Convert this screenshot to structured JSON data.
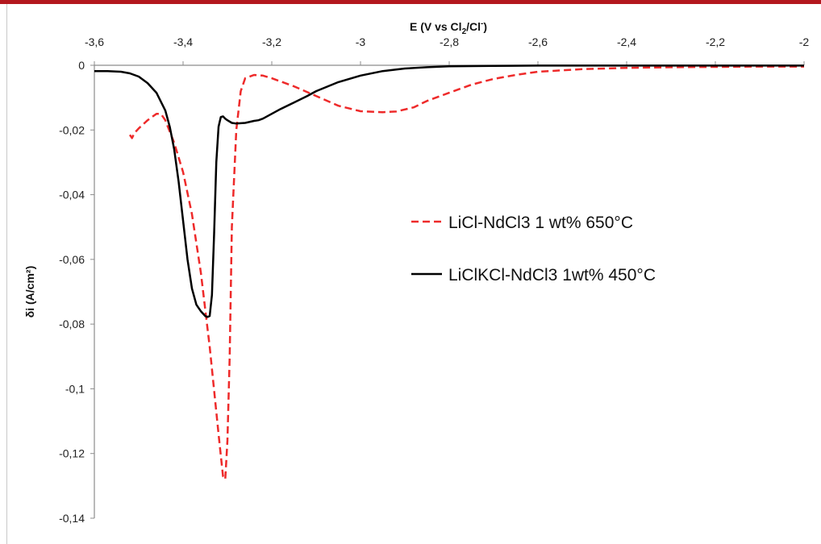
{
  "chart_data": {
    "type": "line",
    "xlabel": {
      "main": "E (V vs Cl",
      "sub": "2",
      "mid": "/Cl",
      "sup": "-",
      "end": ")"
    },
    "ylabel": "δi (A/cm²)",
    "xlim": [
      -3.6,
      -2
    ],
    "ylim": [
      -0.14,
      0
    ],
    "x_axis_position": "top",
    "x_ticks": [
      -3.6,
      -3.4,
      -3.2,
      -3.0,
      -2.8,
      -2.6,
      -2.4,
      -2.2,
      -2.0
    ],
    "x_tick_labels": [
      "-3,6",
      "-3,4",
      "-3,2",
      "-3",
      "-2,8",
      "-2,6",
      "-2,4",
      "-2,2",
      "-2"
    ],
    "y_ticks": [
      0,
      -0.02,
      -0.04,
      -0.06,
      -0.08,
      -0.1,
      -0.12,
      -0.14
    ],
    "y_tick_labels": [
      "0",
      "-0,02",
      "-0,04",
      "-0,06",
      "-0,08",
      "-0,1",
      "-0,12",
      "-0,14"
    ],
    "grid": false,
    "legend_position": "center-right",
    "series": [
      {
        "name": "LiCl-NdCl3 1 wt% 650°C",
        "color": "#ee2a2a",
        "style": "dashed",
        "x": [
          -3.52,
          -3.515,
          -3.51,
          -3.5,
          -3.48,
          -3.46,
          -3.45,
          -3.44,
          -3.42,
          -3.4,
          -3.38,
          -3.36,
          -3.34,
          -3.32,
          -3.31,
          -3.305,
          -3.3,
          -3.295,
          -3.29,
          -3.28,
          -3.27,
          -3.26,
          -3.24,
          -3.22,
          -3.2,
          -3.15,
          -3.1,
          -3.05,
          -3.0,
          -2.95,
          -2.92,
          -2.88,
          -2.85,
          -2.8,
          -2.75,
          -2.7,
          -2.65,
          -2.6,
          -2.5,
          -2.4,
          -2.3,
          -2.2,
          -2.1,
          -2.0
        ],
        "y": [
          -0.0215,
          -0.0225,
          -0.021,
          -0.0195,
          -0.017,
          -0.015,
          -0.015,
          -0.017,
          -0.024,
          -0.033,
          -0.046,
          -0.064,
          -0.087,
          -0.114,
          -0.127,
          -0.128,
          -0.116,
          -0.09,
          -0.05,
          -0.02,
          -0.008,
          -0.004,
          -0.003,
          -0.0032,
          -0.004,
          -0.0065,
          -0.0095,
          -0.0125,
          -0.0142,
          -0.0145,
          -0.0143,
          -0.013,
          -0.011,
          -0.0085,
          -0.006,
          -0.0042,
          -0.003,
          -0.002,
          -0.0012,
          -0.0008,
          -0.0006,
          -0.0005,
          -0.0004,
          -0.0004
        ]
      },
      {
        "name": "LiClKCl-NdCl3 1wt% 450°C",
        "color": "#000000",
        "style": "solid",
        "x": [
          -3.6,
          -3.57,
          -3.54,
          -3.52,
          -3.5,
          -3.48,
          -3.46,
          -3.44,
          -3.43,
          -3.42,
          -3.41,
          -3.4,
          -3.39,
          -3.38,
          -3.37,
          -3.36,
          -3.35,
          -3.345,
          -3.34,
          -3.335,
          -3.33,
          -3.325,
          -3.32,
          -3.315,
          -3.31,
          -3.305,
          -3.3,
          -3.29,
          -3.28,
          -3.26,
          -3.24,
          -3.23,
          -3.22,
          -3.2,
          -3.18,
          -3.15,
          -3.12,
          -3.1,
          -3.05,
          -3.0,
          -2.95,
          -2.9,
          -2.85,
          -2.8,
          -2.7,
          -2.6,
          -2.4,
          -2.2,
          -2.0
        ],
        "y": [
          -0.0018,
          -0.0018,
          -0.002,
          -0.0025,
          -0.0035,
          -0.0055,
          -0.0085,
          -0.014,
          -0.019,
          -0.026,
          -0.036,
          -0.048,
          -0.06,
          -0.069,
          -0.074,
          -0.076,
          -0.0775,
          -0.0778,
          -0.0775,
          -0.071,
          -0.052,
          -0.03,
          -0.019,
          -0.016,
          -0.0158,
          -0.0165,
          -0.017,
          -0.0178,
          -0.018,
          -0.0178,
          -0.0172,
          -0.017,
          -0.0165,
          -0.015,
          -0.0135,
          -0.0115,
          -0.0095,
          -0.008,
          -0.0052,
          -0.0032,
          -0.0018,
          -0.001,
          -0.0006,
          -0.0003,
          -0.0002,
          -0.0001,
          -0.0001,
          -0.0001,
          -0.0001
        ]
      }
    ]
  }
}
